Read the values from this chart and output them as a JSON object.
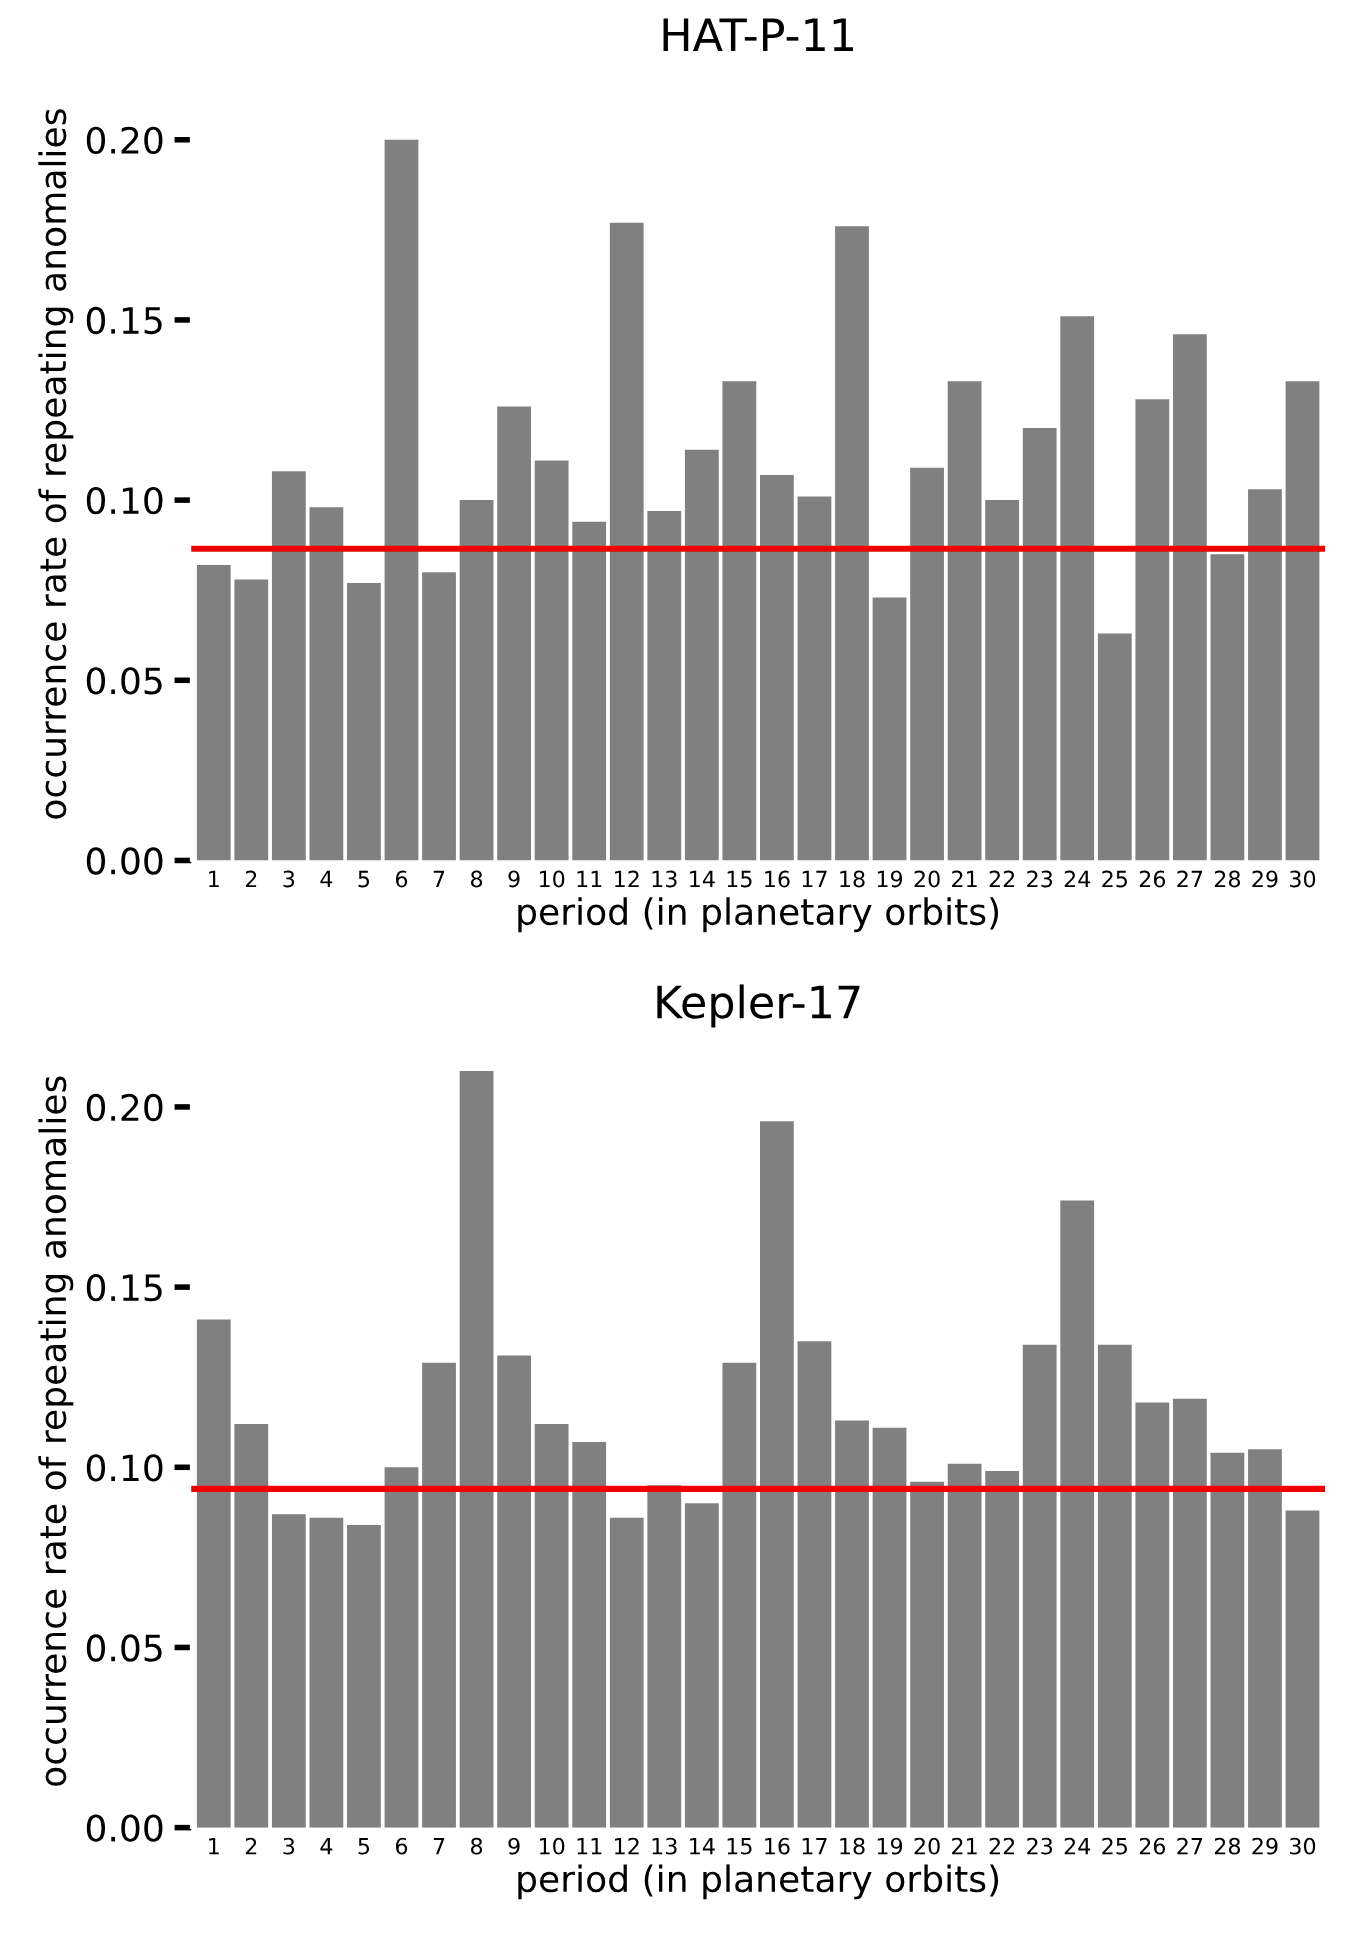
{
  "chart_data": [
    {
      "type": "bar",
      "title": "HAT-P-11",
      "xlabel": "period (in planetary orbits)",
      "ylabel": "occurrence rate of repeating anomalies",
      "categories": [
        "1",
        "2",
        "3",
        "4",
        "5",
        "6",
        "7",
        "8",
        "9",
        "10",
        "11",
        "12",
        "13",
        "14",
        "15",
        "16",
        "17",
        "18",
        "19",
        "20",
        "21",
        "22",
        "23",
        "24",
        "25",
        "26",
        "27",
        "28",
        "29",
        "30"
      ],
      "series": [
        {
          "color": "#808080",
          "values": [
            0.082,
            0.078,
            0.108,
            0.098,
            0.077,
            0.2,
            0.08,
            0.1,
            0.126,
            0.111,
            0.094,
            0.177,
            0.097,
            0.114,
            0.133,
            0.107,
            0.101,
            0.176,
            0.073,
            0.109,
            0.133,
            0.1,
            0.12,
            0.151,
            0.063,
            0.128,
            0.146,
            0.085,
            0.103,
            0.133
          ]
        }
      ],
      "ylim": [
        0,
        0.22
      ],
      "yticks": [
        {
          "value": 0,
          "label": "0.00"
        },
        {
          "value": 0.05,
          "label": "0.05"
        },
        {
          "value": 0.1,
          "label": "0.10"
        },
        {
          "value": 0.15,
          "label": "0.15"
        },
        {
          "value": 0.2,
          "label": "0.20"
        }
      ],
      "grid": false,
      "legend": false,
      "ref_lines": [
        {
          "axis": "y",
          "value": 0.0865,
          "color": "#ee0000"
        }
      ]
    },
    {
      "type": "bar",
      "title": "Kepler-17",
      "xlabel": "period (in planetary orbits)",
      "ylabel": "occurrence rate of repeating anomalies",
      "categories": [
        "1",
        "2",
        "3",
        "4",
        "5",
        "6",
        "7",
        "8",
        "9",
        "10",
        "11",
        "12",
        "13",
        "14",
        "15",
        "16",
        "17",
        "18",
        "19",
        "20",
        "21",
        "22",
        "23",
        "24",
        "25",
        "26",
        "27",
        "28",
        "29",
        "30"
      ],
      "series": [
        {
          "color": "#808080",
          "values": [
            0.141,
            0.112,
            0.087,
            0.086,
            0.084,
            0.1,
            0.129,
            0.21,
            0.131,
            0.112,
            0.107,
            0.086,
            0.095,
            0.09,
            0.129,
            0.196,
            0.135,
            0.113,
            0.111,
            0.096,
            0.101,
            0.099,
            0.134,
            0.174,
            0.134,
            0.118,
            0.119,
            0.104,
            0.105,
            0.088
          ]
        }
      ],
      "ylim": [
        0,
        0.22
      ],
      "yticks": [
        {
          "value": 0,
          "label": "0.00"
        },
        {
          "value": 0.05,
          "label": "0.05"
        },
        {
          "value": 0.1,
          "label": "0.10"
        },
        {
          "value": 0.15,
          "label": "0.15"
        },
        {
          "value": 0.2,
          "label": "0.20"
        }
      ],
      "grid": false,
      "legend": false,
      "ref_lines": [
        {
          "axis": "y",
          "value": 0.094,
          "color": "#ee0000"
        }
      ]
    }
  ]
}
